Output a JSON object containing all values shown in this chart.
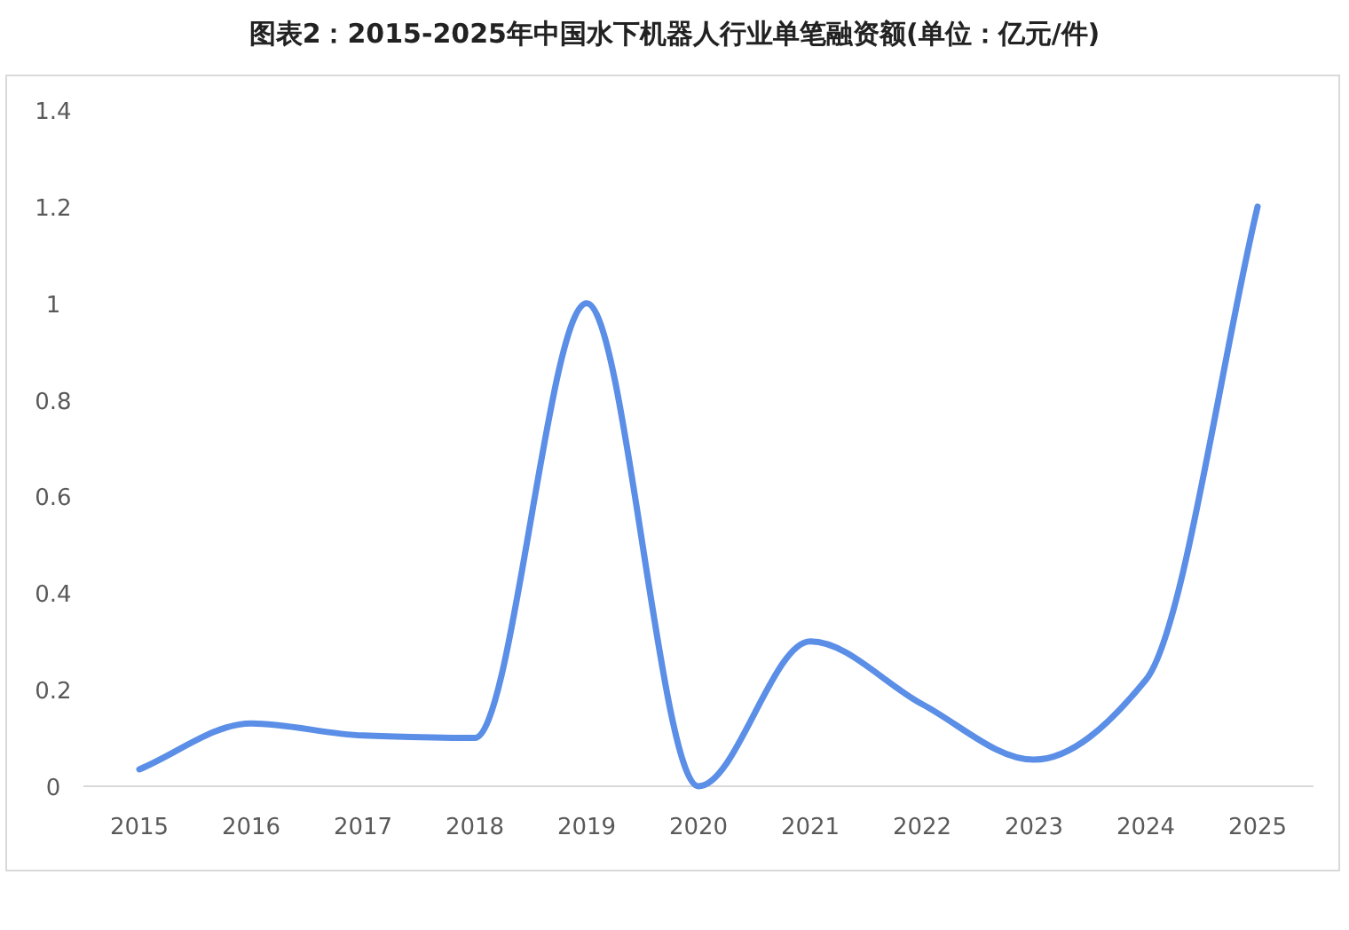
{
  "chart_data": {
    "type": "line",
    "title": "图表2：2015-2025年中国水下机器人行业单笔融资额(单位：亿元/件)",
    "categories": [
      "2015",
      "2016",
      "2017",
      "2018",
      "2019",
      "2020",
      "2021",
      "2022",
      "2023",
      "2024",
      "2025"
    ],
    "series": [
      {
        "color": "#5b8ee6",
        "values": [
          0.035,
          0.13,
          0.105,
          0.1,
          1.0,
          0.0,
          0.3,
          0.17,
          0.055,
          0.22,
          1.2
        ]
      }
    ],
    "ylim": [
      0,
      1.4
    ],
    "yticks": [
      0,
      0.2,
      0.4,
      0.6,
      0.8,
      1,
      1.2,
      1.4
    ],
    "grid": false,
    "marker": "none",
    "line_style": "solid"
  }
}
